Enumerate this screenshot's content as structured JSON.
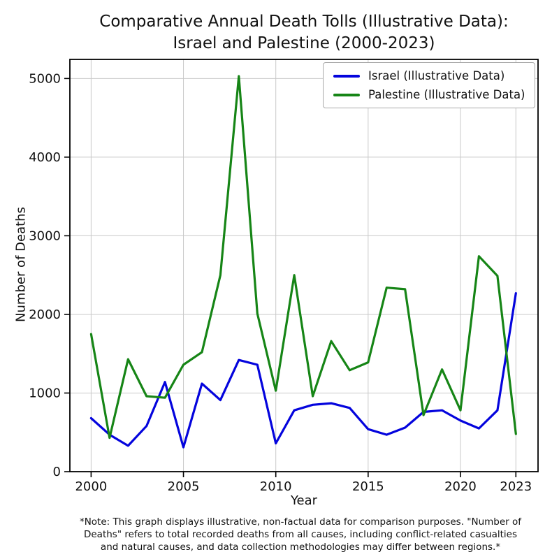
{
  "title": {
    "line1": "Comparative Annual Death Tolls (Illustrative Data):",
    "line2": "Israel and Palestine (2000-2023)"
  },
  "chart_data": {
    "type": "line",
    "title": "Comparative Annual Death Tolls (Illustrative Data): Israel and Palestine (2000-2023)",
    "xlabel": "Year",
    "ylabel": "Number of Deaths",
    "x": [
      2000,
      2001,
      2002,
      2003,
      2004,
      2005,
      2006,
      2007,
      2008,
      2009,
      2010,
      2011,
      2012,
      2013,
      2014,
      2015,
      2016,
      2017,
      2018,
      2019,
      2020,
      2021,
      2022,
      2023
    ],
    "series": [
      {
        "name": "Israel (Illustrative Data)",
        "color": "#0404dd",
        "values": [
          680,
          470,
          330,
          580,
          1140,
          310,
          1120,
          910,
          1420,
          1360,
          360,
          780,
          850,
          870,
          810,
          540,
          470,
          560,
          760,
          780,
          650,
          550,
          780,
          2270
        ]
      },
      {
        "name": "Palestine (Illustrative Data)",
        "color": "#168516",
        "values": [
          1750,
          430,
          1430,
          960,
          940,
          1360,
          1520,
          2500,
          5030,
          2010,
          1030,
          2500,
          960,
          1660,
          1290,
          1390,
          2340,
          2320,
          720,
          1300,
          780,
          2740,
          2490,
          480
        ]
      }
    ],
    "xticks": [
      2000,
      2005,
      2010,
      2015,
      2020,
      2023
    ],
    "yticks": [
      0,
      1000,
      2000,
      3000,
      4000,
      5000
    ],
    "xlim": [
      1998.85,
      2024.2
    ],
    "ylim": [
      0,
      5243
    ],
    "grid": true,
    "grid_color": "#c9c9c9",
    "legend_position": "upper right"
  },
  "footnote": {
    "line1": "*Note: This graph displays illustrative, non-factual data for comparison purposes. \"Number of",
    "line2": "Deaths\" refers to total recorded deaths from all causes, including conflict-related casualties",
    "line3": "and natural causes, and data collection methodologies may differ between regions.*"
  }
}
